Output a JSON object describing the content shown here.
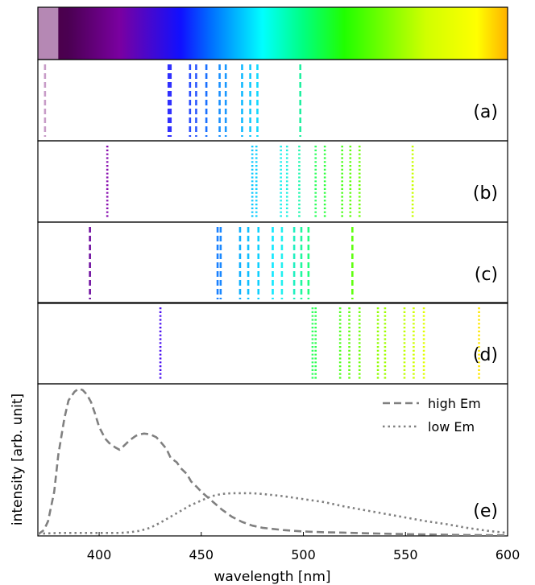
{
  "chart_data": [
    {
      "type": "spectrum-bar",
      "x_range": [
        370,
        600
      ],
      "gradient_stops": [
        {
          "wl": 370,
          "color": "#4a003f"
        },
        {
          "wl": 385,
          "color": "#4b0052"
        },
        {
          "wl": 410,
          "color": "#7a00a0"
        },
        {
          "wl": 440,
          "color": "#1010ff"
        },
        {
          "wl": 455,
          "color": "#0070ff"
        },
        {
          "wl": 480,
          "color": "#00ffff"
        },
        {
          "wl": 500,
          "color": "#00ff80"
        },
        {
          "wl": 520,
          "color": "#20ff00"
        },
        {
          "wl": 560,
          "color": "#d0ff00"
        },
        {
          "wl": 585,
          "color": "#ffff00"
        },
        {
          "wl": 600,
          "color": "#ffb000"
        }
      ],
      "overlay_range": [
        370,
        380
      ],
      "overlay_color": "#c8a0c8"
    },
    {
      "type": "line-spectrum",
      "panel_label": "(a)",
      "line_style": "dashed",
      "lines": [
        {
          "wl": 373.5,
          "color": "#c89cc8"
        },
        {
          "wl": 434,
          "color": "#3030ff"
        },
        {
          "wl": 435,
          "color": "#3030ff"
        },
        {
          "wl": 444.5,
          "color": "#2a4cff"
        },
        {
          "wl": 447.5,
          "color": "#2a58ff"
        },
        {
          "wl": 452.5,
          "color": "#1a70ff"
        },
        {
          "wl": 459,
          "color": "#1a90ff"
        },
        {
          "wl": 462,
          "color": "#1a98ff"
        },
        {
          "wl": 470,
          "color": "#10b8ff"
        },
        {
          "wl": 474,
          "color": "#10c8ff"
        },
        {
          "wl": 477.5,
          "color": "#10d8ff"
        },
        {
          "wl": 498.5,
          "color": "#20f0a0"
        }
      ]
    },
    {
      "type": "line-spectrum",
      "panel_label": "(b)",
      "line_style": "dotted",
      "lines": [
        {
          "wl": 404,
          "color": "#8a10b0"
        },
        {
          "wl": 475,
          "color": "#10c8ff"
        },
        {
          "wl": 477,
          "color": "#10d0ff"
        },
        {
          "wl": 489,
          "color": "#20f0f0"
        },
        {
          "wl": 492,
          "color": "#20f0e0"
        },
        {
          "wl": 498,
          "color": "#20f8b0"
        },
        {
          "wl": 506,
          "color": "#30ff60"
        },
        {
          "wl": 510.5,
          "color": "#30ff40"
        },
        {
          "wl": 519,
          "color": "#50ff20"
        },
        {
          "wl": 523,
          "color": "#60ff10"
        },
        {
          "wl": 527.5,
          "color": "#70ff10"
        },
        {
          "wl": 553.5,
          "color": "#c8ff00"
        }
      ]
    },
    {
      "type": "line-spectrum",
      "panel_label": "(c)",
      "line_style": "dashed",
      "lines": [
        {
          "wl": 395.5,
          "color": "#7010a0"
        },
        {
          "wl": 458,
          "color": "#1a80ff"
        },
        {
          "wl": 459.5,
          "color": "#1a88ff"
        },
        {
          "wl": 469,
          "color": "#10b0ff"
        },
        {
          "wl": 473,
          "color": "#10c0ff"
        },
        {
          "wl": 478,
          "color": "#10d0ff"
        },
        {
          "wl": 485,
          "color": "#10e8ff"
        },
        {
          "wl": 489.5,
          "color": "#20f0f0"
        },
        {
          "wl": 495.5,
          "color": "#20f0c0"
        },
        {
          "wl": 499,
          "color": "#20f8a0"
        },
        {
          "wl": 502.5,
          "color": "#20ff80"
        },
        {
          "wl": 524,
          "color": "#60ff10"
        }
      ]
    },
    {
      "type": "line-spectrum",
      "panel_label": "(d)",
      "line_style": "dotted",
      "lines": [
        {
          "wl": 430,
          "color": "#4a10f0"
        },
        {
          "wl": 504.5,
          "color": "#30ff60"
        },
        {
          "wl": 506,
          "color": "#30ff50"
        },
        {
          "wl": 518,
          "color": "#50ff20"
        },
        {
          "wl": 522.5,
          "color": "#60ff10"
        },
        {
          "wl": 527.5,
          "color": "#70ff10"
        },
        {
          "wl": 536.5,
          "color": "#90ff00"
        },
        {
          "wl": 540,
          "color": "#a0ff00"
        },
        {
          "wl": 549.5,
          "color": "#c0ff00"
        },
        {
          "wl": 554,
          "color": "#d0ff00"
        },
        {
          "wl": 559,
          "color": "#e0ff00"
        },
        {
          "wl": 586,
          "color": "#ffe800"
        }
      ]
    },
    {
      "type": "line",
      "panel_label": "(e)",
      "xlabel": "wavelength [nm]",
      "ylabel": "intensity [arb. unit]",
      "xlim": [
        370,
        600
      ],
      "ylim": [
        0,
        1
      ],
      "xticks": [
        400,
        450,
        500,
        550,
        600
      ],
      "legend_position": "top-right",
      "series": [
        {
          "name": "high Em",
          "style": "dashed",
          "color": "#808080",
          "x": [
            370,
            373,
            375,
            378,
            380,
            383,
            385,
            388,
            390,
            392,
            394,
            396,
            398,
            400,
            403,
            405,
            408,
            410,
            412,
            415,
            418,
            420,
            422,
            425,
            428,
            430,
            433,
            435,
            438,
            440,
            443,
            445,
            448,
            450,
            455,
            460,
            465,
            470,
            475,
            480,
            490,
            500,
            510,
            520,
            530,
            540,
            550,
            560,
            570,
            580,
            590,
            600
          ],
          "y": [
            0.01,
            0.04,
            0.1,
            0.3,
            0.55,
            0.8,
            0.92,
            0.98,
            1.0,
            0.99,
            0.96,
            0.91,
            0.83,
            0.74,
            0.66,
            0.63,
            0.6,
            0.585,
            0.61,
            0.65,
            0.68,
            0.69,
            0.695,
            0.69,
            0.67,
            0.64,
            0.59,
            0.53,
            0.5,
            0.46,
            0.42,
            0.37,
            0.33,
            0.3,
            0.24,
            0.18,
            0.13,
            0.095,
            0.07,
            0.055,
            0.04,
            0.03,
            0.025,
            0.022,
            0.018,
            0.015,
            0.012,
            0.01,
            0.008,
            0.006,
            0.005,
            0.004
          ]
        },
        {
          "name": "low Em",
          "style": "dotted",
          "color": "#808080",
          "x": [
            370,
            380,
            390,
            400,
            410,
            415,
            420,
            425,
            430,
            435,
            440,
            445,
            450,
            455,
            460,
            465,
            470,
            475,
            480,
            490,
            500,
            510,
            520,
            530,
            540,
            550,
            560,
            570,
            580,
            590,
            600
          ],
          "y": [
            0.015,
            0.02,
            0.02,
            0.02,
            0.02,
            0.025,
            0.035,
            0.055,
            0.09,
            0.13,
            0.17,
            0.21,
            0.24,
            0.27,
            0.285,
            0.29,
            0.29,
            0.29,
            0.285,
            0.27,
            0.25,
            0.23,
            0.2,
            0.175,
            0.15,
            0.125,
            0.1,
            0.08,
            0.055,
            0.035,
            0.02
          ]
        }
      ]
    }
  ]
}
